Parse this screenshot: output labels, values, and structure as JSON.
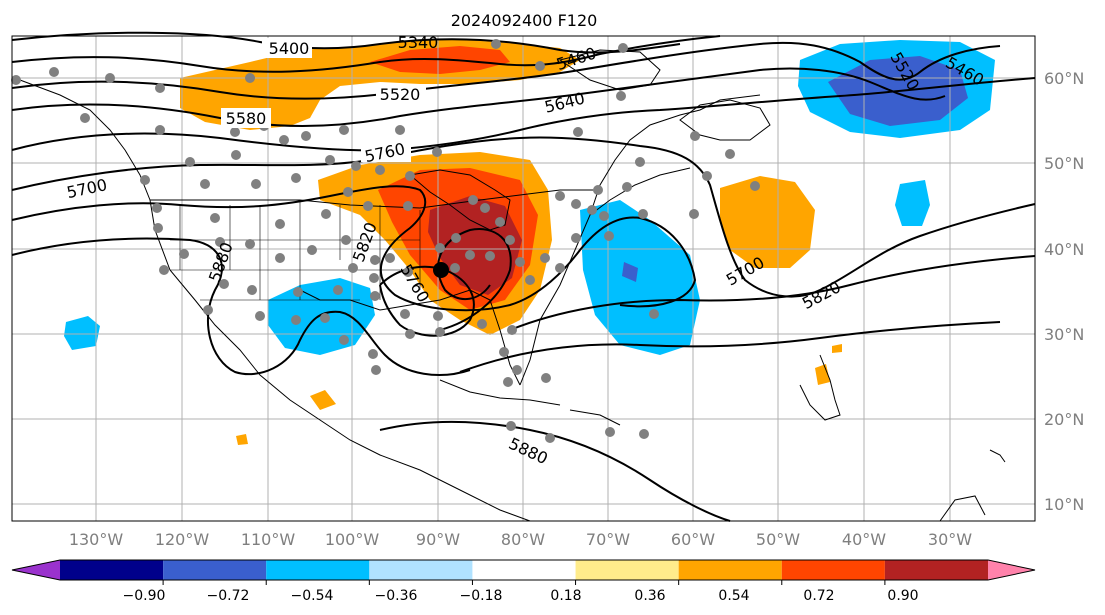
{
  "title": "2024092400 F120",
  "map": {
    "lon_labels": [
      "130°W",
      "120°W",
      "110°W",
      "100°W",
      "90°W",
      "80°W",
      "70°W",
      "60°W",
      "50°W",
      "40°W",
      "30°W"
    ],
    "lat_labels": [
      "60°N",
      "50°N",
      "40°N",
      "30°N",
      "20°N",
      "10°N"
    ],
    "contour_labels": [
      "5400",
      "5340",
      "5460",
      "5520",
      "5580",
      "5640",
      "5520",
      "5460",
      "5760",
      "5700",
      "5880",
      "5820",
      "5760",
      "5700",
      "5820",
      "5880"
    ],
    "marker": "black-dot"
  },
  "colorbar": {
    "ticks": [
      "−0.90",
      "−0.72",
      "−0.54",
      "−0.36",
      "−0.18",
      "0.18",
      "0.36",
      "0.54",
      "0.72",
      "0.90"
    ],
    "colors": [
      "#9a32cd",
      "#00008b",
      "#3a5fcd",
      "#00bfff",
      "#b0e2ff",
      "#ffffff",
      "#ffec8b",
      "#ffa500",
      "#ff4500",
      "#b22222",
      "#ff82ab"
    ]
  }
}
